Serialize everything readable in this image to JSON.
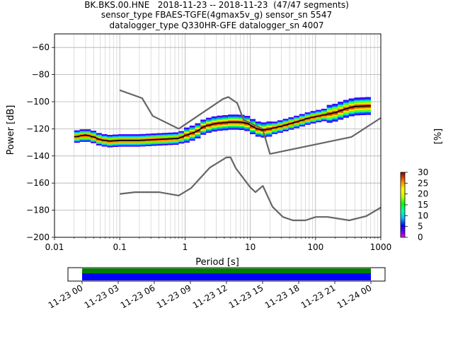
{
  "title": {
    "line1": "BK.BKS.00.HNE   2018-11-23 -- 2018-11-23  (47/47 segments)",
    "line2": "sensor_type FBAES-TGFE(4gmax5v_g) sensor_sn 5547",
    "line3": "datalogger_type Q330HR-GFE datalogger_sn 4007"
  },
  "chart_data": [
    {
      "type": "heatmap",
      "xlabel": "Period [s]",
      "ylabel": "Power [dB]",
      "xscale": "log",
      "xlim": [
        0.01,
        1000
      ],
      "ylim": [
        -200,
        -50
      ],
      "x_ticks": [
        "0.01",
        "0.1",
        "1",
        "10",
        "100",
        "1000"
      ],
      "x_tick_values": [
        0.01,
        0.1,
        1,
        10,
        100,
        1000
      ],
      "y_ticks": [
        "−200",
        "−180",
        "−160",
        "−140",
        "−120",
        "−100",
        "−80",
        "−60"
      ],
      "y_tick_values": [
        -200,
        -180,
        -160,
        -140,
        -120,
        -100,
        -80,
        -60
      ],
      "grid": true,
      "colorbar": {
        "label": "[%]",
        "min": 0,
        "max": 30,
        "ticks": [
          "0",
          "5",
          "10",
          "15",
          "20",
          "25",
          "30"
        ],
        "tick_values": [
          0,
          5,
          10,
          15,
          20,
          25,
          30
        ]
      },
      "noise_model_high": {
        "x": [
          0.1,
          0.22,
          0.32,
          0.8,
          3.8,
          4.6,
          6.3,
          7.9,
          15.4,
          20,
          354.8,
          1000
        ],
        "y": [
          -91.5,
          -97.4,
          -110.5,
          -120,
          -98,
          -96.5,
          -101,
          -113.5,
          -120,
          -138.5,
          -126,
          -112
        ]
      },
      "noise_model_low": {
        "x": [
          0.1,
          0.17,
          0.4,
          0.8,
          1.24,
          2.4,
          4.3,
          5,
          6,
          10,
          12,
          15.6,
          21.9,
          31.6,
          45,
          70,
          101,
          154,
          328,
          600,
          1000
        ],
        "y": [
          -168,
          -166.7,
          -166.7,
          -169.2,
          -163.7,
          -148.6,
          -141.1,
          -141.1,
          -149,
          -163.2,
          -166.7,
          -162.1,
          -177.5,
          -185,
          -187.5,
          -187.5,
          -185,
          -185,
          -187.5,
          -184.4,
          -178
        ]
      },
      "median_psd": {
        "x": [
          0.02,
          0.03,
          0.04,
          0.05,
          0.07,
          0.1,
          0.2,
          0.3,
          0.5,
          0.8,
          1.0,
          1.5,
          2.0,
          3.0,
          4.0,
          5.0,
          7.0,
          9.0,
          12,
          15,
          20,
          30,
          50,
          80,
          100,
          200,
          300,
          400,
          700
        ],
        "y": [
          -126,
          -124.5,
          -126,
          -128,
          -129,
          -128.5,
          -128.5,
          -128,
          -127.5,
          -127,
          -125,
          -122,
          -118,
          -116,
          -115.5,
          -115,
          -115,
          -116,
          -119.5,
          -121,
          -120,
          -118,
          -115,
          -112,
          -111,
          -108,
          -105,
          -103.5,
          -103
        ]
      }
    },
    {
      "type": "timeline",
      "x_ticks": [
        "11-23 00",
        "11-23 03",
        "11-23 06",
        "11-23 09",
        "11-23 12",
        "11-23 15",
        "11-23 18",
        "11-23 21",
        "11-24 00"
      ],
      "data_coverage": {
        "start": "11-23 00",
        "end": "11-24 00",
        "color": "#0000ff"
      },
      "used_coverage": {
        "start": "11-23 00",
        "end": "11-24 00",
        "color": "#008000"
      }
    }
  ]
}
